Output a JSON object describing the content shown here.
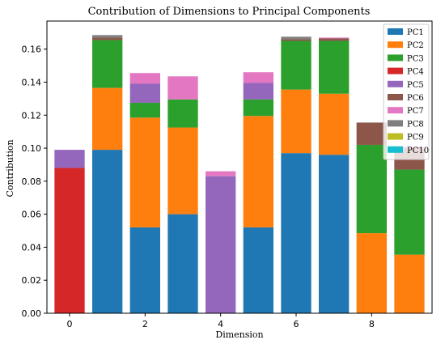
{
  "chart_data": {
    "type": "bar",
    "stacked": true,
    "title": "Contribution of Dimensions to Principal Components",
    "xlabel": "Dimension",
    "ylabel": "Contribution",
    "x": [
      0,
      1,
      2,
      3,
      4,
      5,
      6,
      7,
      8,
      9
    ],
    "xticks": [
      0,
      2,
      4,
      6,
      8
    ],
    "xlim": [
      -0.6,
      9.6
    ],
    "ylim": [
      0,
      0.177
    ],
    "yticks": [
      0.0,
      0.02,
      0.04,
      0.06,
      0.08,
      0.1,
      0.12,
      0.14,
      0.16
    ],
    "legend_position": "top-right",
    "grid": false,
    "series": [
      {
        "name": "PC1",
        "color": "#1f77b4",
        "values": [
          0.0,
          0.099,
          0.052,
          0.06,
          0.0,
          0.052,
          0.097,
          0.096,
          0.0,
          0.0
        ]
      },
      {
        "name": "PC2",
        "color": "#ff7f0e",
        "values": [
          0.0,
          0.0375,
          0.0665,
          0.0525,
          0.0,
          0.0675,
          0.0385,
          0.037,
          0.0485,
          0.0355
        ]
      },
      {
        "name": "PC3",
        "color": "#2ca02c",
        "values": [
          0.0,
          0.029,
          0.009,
          0.017,
          0.0,
          0.01,
          0.0295,
          0.032,
          0.0535,
          0.0515
        ]
      },
      {
        "name": "PC4",
        "color": "#d62728",
        "values": [
          0.088,
          0.0,
          0.0,
          0.0,
          0.0,
          0.0,
          0.0,
          0.0,
          0.0,
          0.0
        ]
      },
      {
        "name": "PC5",
        "color": "#9467bd",
        "values": [
          0.011,
          0.0,
          0.0115,
          0.0,
          0.083,
          0.01,
          0.0,
          0.0,
          0.0,
          0.0
        ]
      },
      {
        "name": "PC6",
        "color": "#8c564b",
        "values": [
          0.0,
          0.0015,
          0.0,
          0.0,
          0.0,
          0.0,
          0.001,
          0.0015,
          0.0135,
          0.013
        ]
      },
      {
        "name": "PC7",
        "color": "#e377c2",
        "values": [
          0.0,
          0.0,
          0.0065,
          0.014,
          0.003,
          0.0065,
          0.0,
          0.0005,
          0.0,
          0.001
        ]
      },
      {
        "name": "PC8",
        "color": "#7f7f7f",
        "values": [
          0.0,
          0.0015,
          0.0,
          0.0,
          0.0,
          0.0,
          0.0015,
          0.0,
          0.0,
          0.0
        ]
      },
      {
        "name": "PC9",
        "color": "#bcbd22",
        "values": [
          0.0,
          0.0,
          0.0,
          0.0,
          0.0,
          0.0,
          0.0,
          0.0,
          0.0,
          0.0
        ]
      },
      {
        "name": "PC10",
        "color": "#17becf",
        "values": [
          0.0,
          0.0,
          0.0,
          0.0,
          0.0,
          0.0,
          0.0,
          0.0,
          0.0,
          0.0
        ]
      }
    ]
  }
}
